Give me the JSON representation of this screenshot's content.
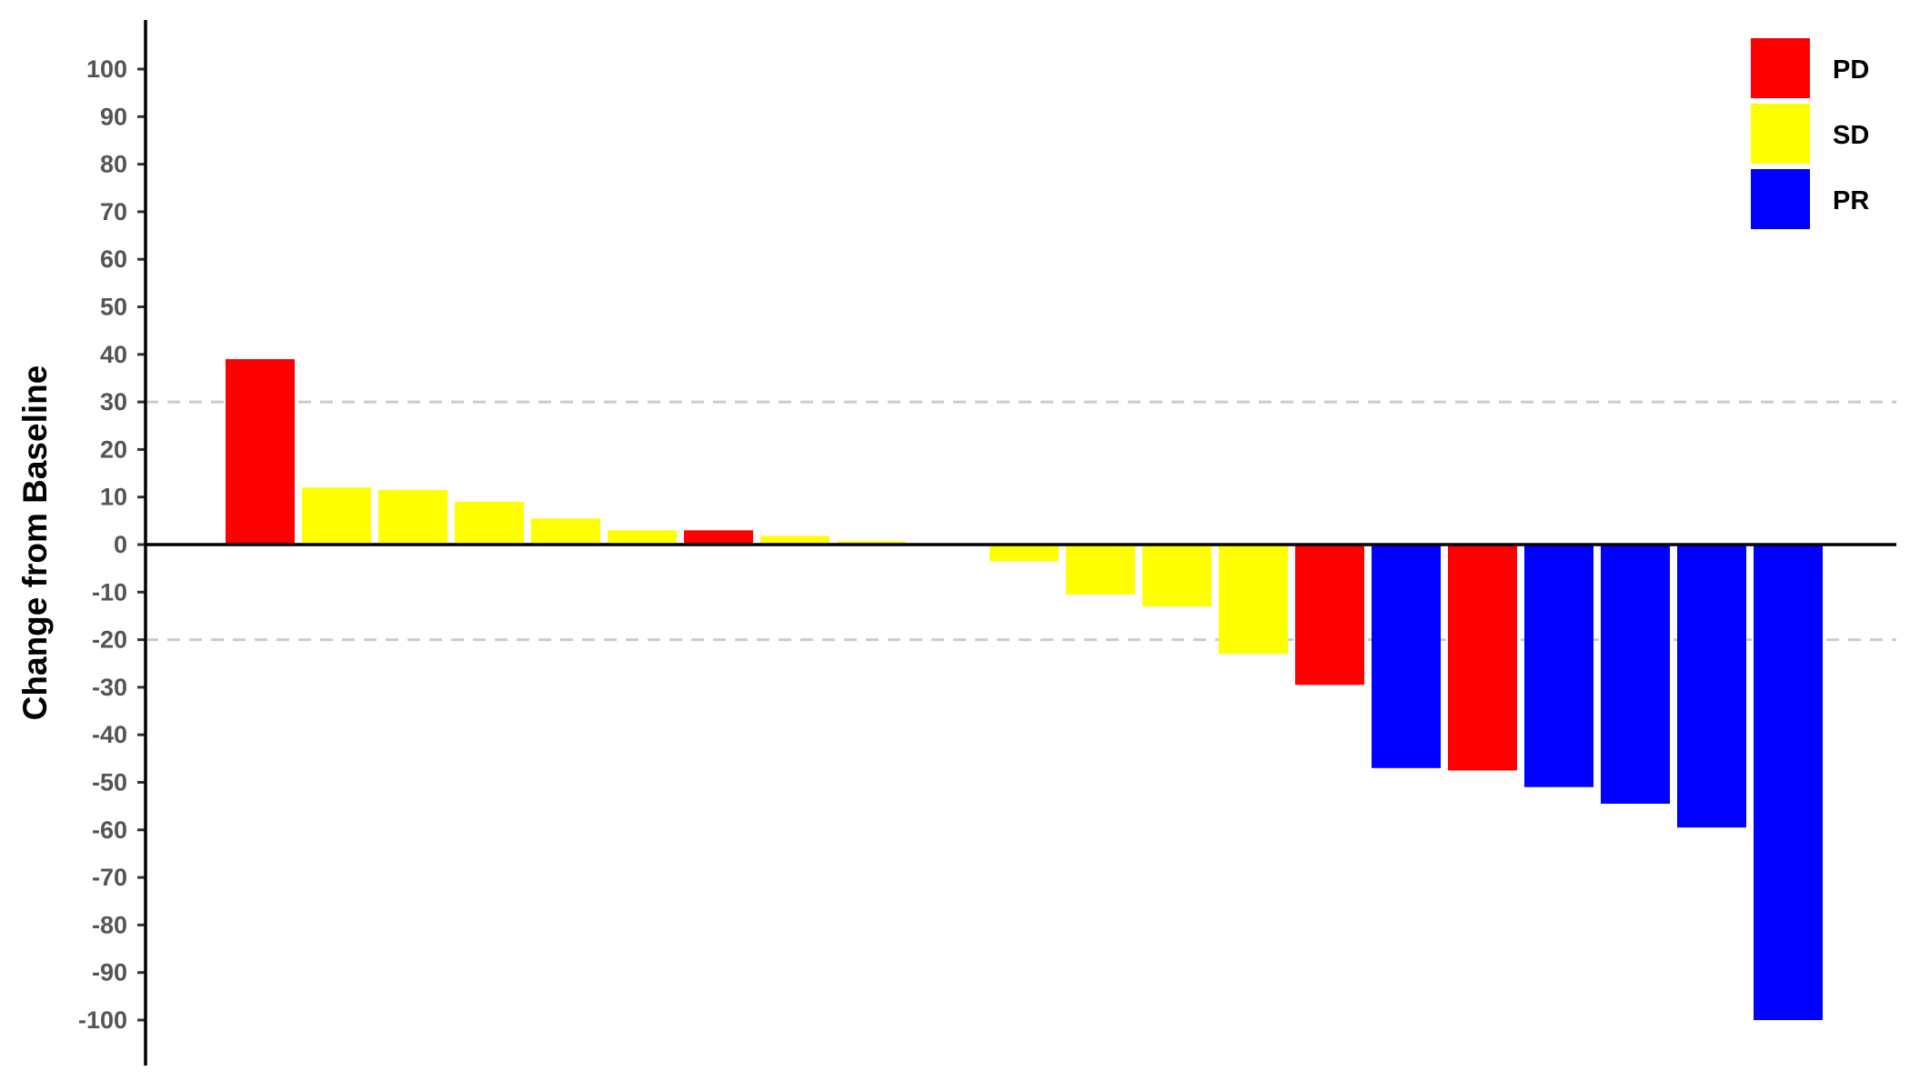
{
  "chart_data": {
    "type": "bar",
    "title": "",
    "xlabel": "",
    "ylabel": "Change from Baseline",
    "ylim": [
      -100,
      100
    ],
    "yticks": [
      100,
      90,
      80,
      70,
      60,
      50,
      40,
      30,
      20,
      10,
      0,
      -10,
      -20,
      -30,
      -40,
      -50,
      -60,
      -70,
      -80,
      -90,
      -100
    ],
    "reference_lines": [
      30,
      -20
    ],
    "grid": false,
    "legend": {
      "position": "top-right",
      "entries": [
        {
          "label": "PD",
          "color": "#ff0000"
        },
        {
          "label": "SD",
          "color": "#ffff00"
        },
        {
          "label": "PR",
          "color": "#0000ff"
        }
      ]
    },
    "bars": [
      {
        "value": 39,
        "category": "PD"
      },
      {
        "value": 12,
        "category": "SD"
      },
      {
        "value": 11.5,
        "category": "SD"
      },
      {
        "value": 9,
        "category": "SD"
      },
      {
        "value": 5.5,
        "category": "SD"
      },
      {
        "value": 3,
        "category": "SD"
      },
      {
        "value": 3,
        "category": "PD"
      },
      {
        "value": 1.8,
        "category": "SD"
      },
      {
        "value": 0.7,
        "category": "SD"
      },
      {
        "value": 0,
        "category": "SD"
      },
      {
        "value": -3.5,
        "category": "SD"
      },
      {
        "value": -10.5,
        "category": "SD"
      },
      {
        "value": -13,
        "category": "SD"
      },
      {
        "value": -23,
        "category": "SD"
      },
      {
        "value": -29.5,
        "category": "PD"
      },
      {
        "value": -47,
        "category": "PR"
      },
      {
        "value": -47.5,
        "category": "PD"
      },
      {
        "value": -51,
        "category": "PR"
      },
      {
        "value": -54.5,
        "category": "PR"
      },
      {
        "value": -59.5,
        "category": "PR"
      },
      {
        "value": -100,
        "category": "PR"
      }
    ]
  }
}
